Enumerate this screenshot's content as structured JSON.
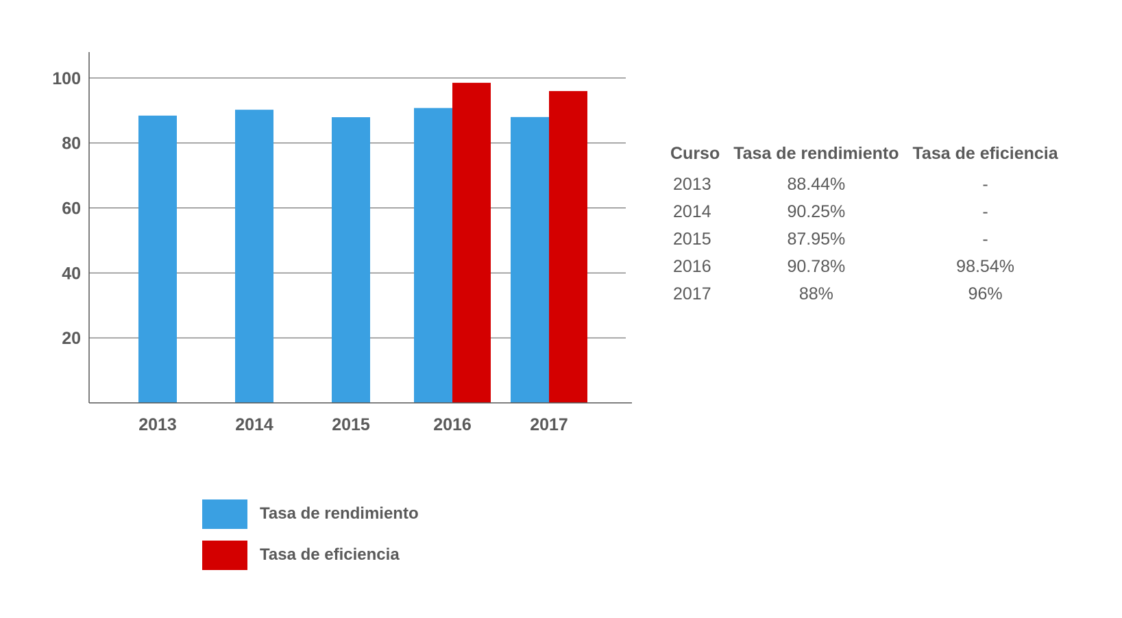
{
  "chart_data": {
    "type": "bar",
    "categories": [
      "2013",
      "2014",
      "2015",
      "2016",
      "2017"
    ],
    "series": [
      {
        "name": "Tasa de rendimiento",
        "color": "#3aa0e2",
        "values": [
          88.44,
          90.25,
          87.95,
          90.78,
          88
        ]
      },
      {
        "name": "Tasa de eficiencia",
        "color": "#d40000",
        "values": [
          null,
          null,
          null,
          98.54,
          96
        ]
      }
    ],
    "yticks": [
      20,
      40,
      60,
      80,
      100
    ],
    "ylim": [
      0,
      108
    ],
    "grid": true,
    "legend_position": "bottom"
  },
  "table": {
    "headers": [
      "Curso",
      "Tasa de rendimiento",
      "Tasa de eficiencia"
    ],
    "rows": [
      [
        "2013",
        "88.44%",
        "-"
      ],
      [
        "2014",
        "90.25%",
        "-"
      ],
      [
        "2015",
        "87.95%",
        "-"
      ],
      [
        "2016",
        "90.78%",
        "98.54%"
      ],
      [
        "2017",
        "88%",
        "96%"
      ]
    ]
  },
  "legend": {
    "items": [
      {
        "label": "Tasa de rendimiento",
        "color": "#3aa0e2"
      },
      {
        "label": "Tasa de eficiencia",
        "color": "#d40000"
      }
    ]
  }
}
